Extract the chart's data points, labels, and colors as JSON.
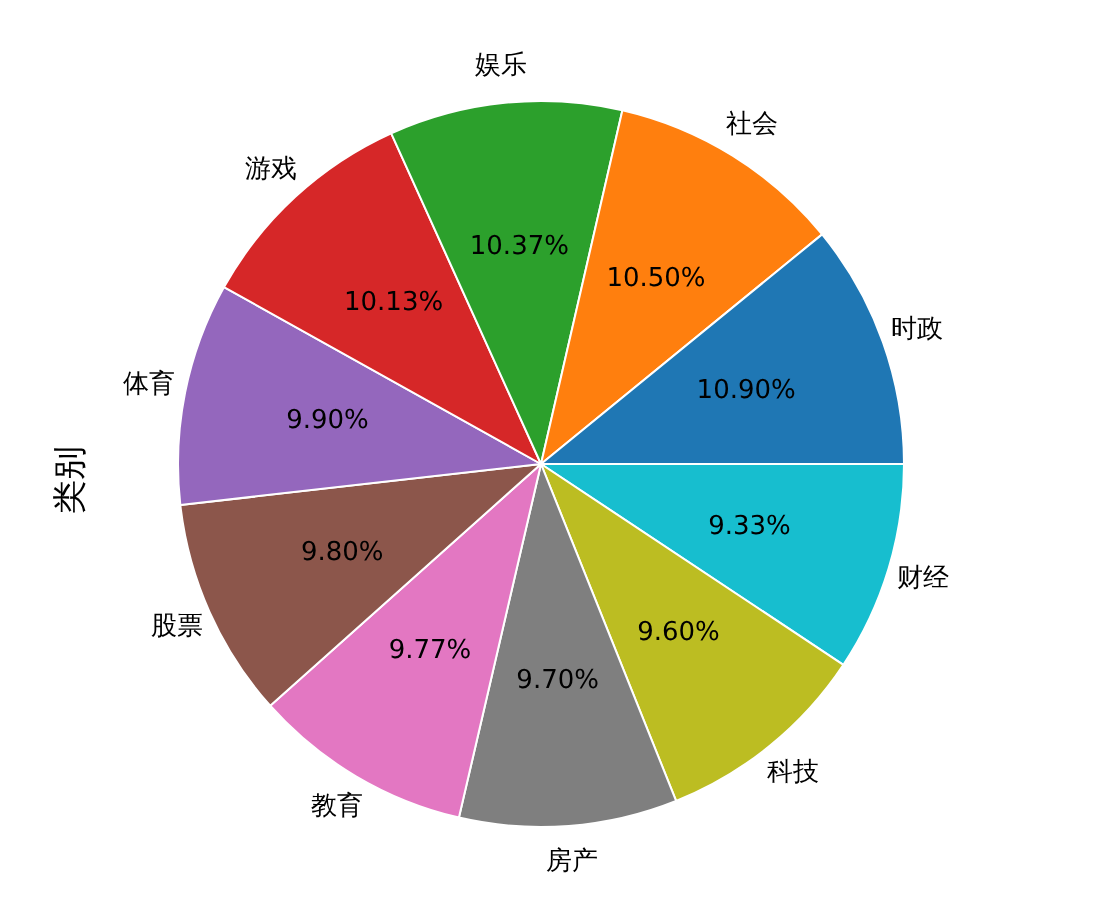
{
  "chart_data": {
    "type": "pie",
    "ylabel": "类别",
    "categories": [
      "时政",
      "社会",
      "娱乐",
      "游戏",
      "体育",
      "股票",
      "教育",
      "房产",
      "科技",
      "财经"
    ],
    "values": [
      10.9,
      10.5,
      10.37,
      10.13,
      9.9,
      9.8,
      9.77,
      9.7,
      9.6,
      9.33
    ],
    "value_labels": [
      "10.90%",
      "10.50%",
      "10.37%",
      "10.13%",
      "9.90%",
      "9.80%",
      "9.77%",
      "9.70%",
      "9.60%",
      "9.33%"
    ],
    "colors": [
      "#1f77b4",
      "#ff7f0e",
      "#2ca02c",
      "#d62728",
      "#9467bd",
      "#8c564b",
      "#e377c2",
      "#7f7f7f",
      "#bcbd22",
      "#17becf"
    ],
    "legend": false
  }
}
